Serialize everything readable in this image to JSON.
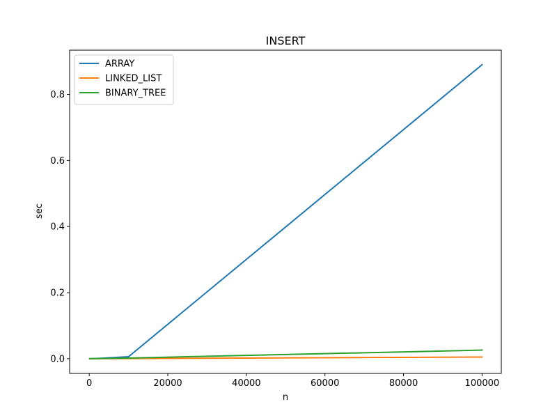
{
  "chart_data": {
    "type": "line",
    "title": "INSERT",
    "xlabel": "n",
    "ylabel": "sec",
    "xlim": [
      -4995,
      104895
    ],
    "ylim": [
      -0.0445,
      0.934
    ],
    "xticks": [
      0,
      20000,
      40000,
      60000,
      80000,
      100000
    ],
    "xtick_labels": [
      "0",
      "20000",
      "40000",
      "60000",
      "80000",
      "100000"
    ],
    "yticks": [
      0.0,
      0.2,
      0.4,
      0.6,
      0.8
    ],
    "ytick_labels": [
      "0.0",
      "0.2",
      "0.4",
      "0.6",
      "0.8"
    ],
    "grid": false,
    "legend_position": "top-left",
    "x": [
      100,
      1000,
      10000,
      100000
    ],
    "series": [
      {
        "name": "ARRAY",
        "color": "#1f77b4",
        "values": [
          0.0,
          0.0001,
          0.006,
          0.89
        ]
      },
      {
        "name": "LINKED_LIST",
        "color": "#ff7f0e",
        "values": [
          0.0,
          0.0,
          0.0005,
          0.005
        ]
      },
      {
        "name": "BINARY_TREE",
        "color": "#2ca02c",
        "values": [
          0.0,
          0.0002,
          0.002,
          0.026
        ]
      }
    ]
  }
}
